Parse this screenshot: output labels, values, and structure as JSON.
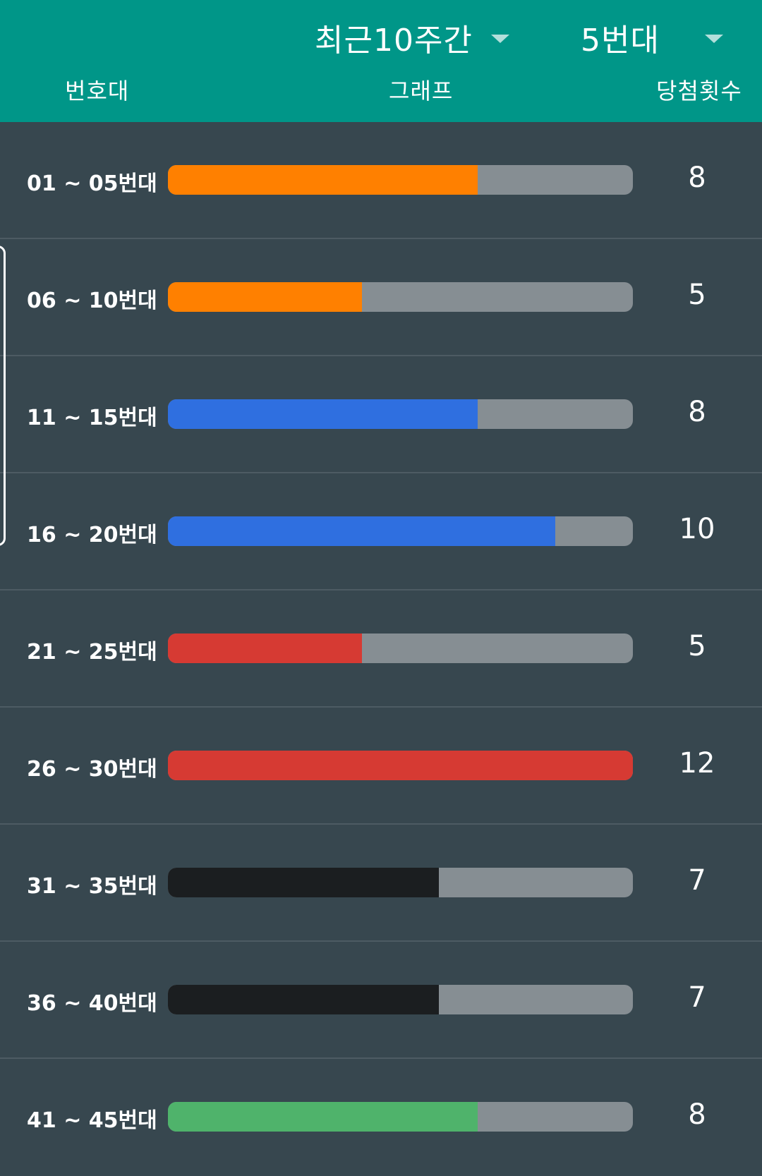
{
  "header": {
    "period_dropdown": "최근10주간",
    "group_dropdown": "5번대",
    "col_range": "번호대",
    "col_graph": "그래프",
    "col_count": "당첨횟수"
  },
  "chart_data": {
    "type": "bar",
    "orientation": "horizontal",
    "xlim": [
      0,
      12
    ],
    "categories": [
      "01 ~ 05번대",
      "06 ~ 10번대",
      "11 ~ 15번대",
      "16 ~ 20번대",
      "21 ~ 25번대",
      "26 ~ 30번대",
      "31 ~ 35번대",
      "36 ~ 40번대",
      "41 ~ 45번대"
    ],
    "values": [
      8,
      5,
      8,
      10,
      5,
      12,
      7,
      7,
      8
    ],
    "colors": [
      "#ff8000",
      "#ff8000",
      "#2f6fe0",
      "#2f6fe0",
      "#d63a33",
      "#d63a33",
      "#1b1e20",
      "#1b1e20",
      "#4fb36b"
    ],
    "track_color": "#868e93"
  }
}
